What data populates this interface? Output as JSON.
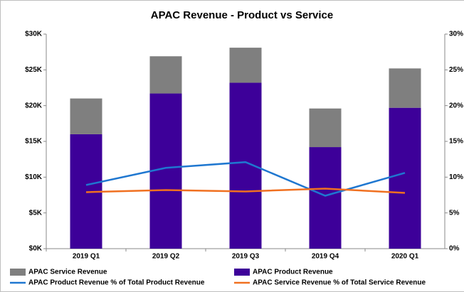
{
  "chart_data": {
    "type": "bar",
    "stacked": true,
    "title": "APAC Revenue - Product  vs Service",
    "categories": [
      "2019 Q1",
      "2019 Q2",
      "2019 Q3",
      "2019 Q4",
      "2020 Q1"
    ],
    "series": [
      {
        "name": "APAC Product Revenue",
        "color": "#3d0099",
        "type": "bar",
        "values": [
          16000,
          21700,
          23200,
          14200,
          19700
        ]
      },
      {
        "name": "APAC Service Revenue",
        "color": "#7f7f7f",
        "type": "bar",
        "values": [
          5000,
          5200,
          4900,
          5400,
          5500
        ]
      },
      {
        "name": "APAC Product Revenue % of Total Product Revenue",
        "color": "#1f77d0",
        "type": "line",
        "axis": "y2",
        "values": [
          8.9,
          11.3,
          12.1,
          7.4,
          10.6
        ]
      },
      {
        "name": "APAC Service Revenue % of Total Service Revenue",
        "color": "#f07020",
        "type": "line",
        "axis": "y2",
        "values": [
          7.9,
          8.2,
          8.0,
          8.4,
          7.8
        ]
      }
    ],
    "ylim": [
      0,
      30000
    ],
    "yticks": [
      {
        "value": 0,
        "label": "$0K"
      },
      {
        "value": 5000,
        "label": "$5K"
      },
      {
        "value": 10000,
        "label": "$10K"
      },
      {
        "value": 15000,
        "label": "$15K"
      },
      {
        "value": 20000,
        "label": "$20K"
      },
      {
        "value": 25000,
        "label": "$25K"
      },
      {
        "value": 30000,
        "label": "$30K"
      }
    ],
    "y2lim": [
      0,
      30
    ],
    "y2ticks": [
      {
        "value": 0,
        "label": "0%"
      },
      {
        "value": 5,
        "label": "5%"
      },
      {
        "value": 10,
        "label": "10%"
      },
      {
        "value": 15,
        "label": "15%"
      },
      {
        "value": 20,
        "label": "20%"
      },
      {
        "value": 25,
        "label": "25%"
      },
      {
        "value": 30,
        "label": "30%"
      }
    ],
    "grid": false,
    "legend": "bottom"
  }
}
